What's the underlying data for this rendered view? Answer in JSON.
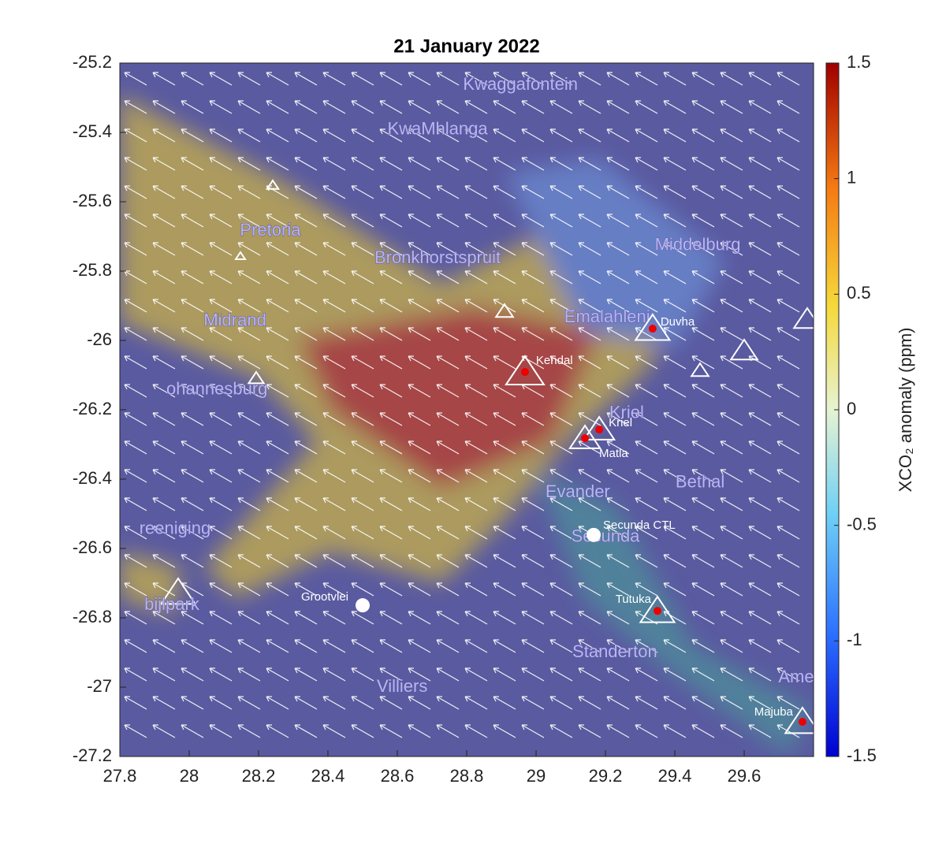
{
  "chart_data": {
    "type": "map",
    "title": "21 January 2022",
    "xlim": [
      27.8,
      29.8
    ],
    "xticks": [
      27.8,
      28,
      28.2,
      28.4,
      28.6,
      28.8,
      29,
      29.2,
      29.4,
      29.6
    ],
    "ylim": [
      -27.2,
      -25.2
    ],
    "yticks": [
      -25.2,
      -25.4,
      -25.6,
      -25.8,
      -26,
      -26.2,
      -26.4,
      -26.6,
      -26.8,
      -27,
      -27.2
    ],
    "colorbar": {
      "label": "XCO₂ anomaly (ppm)",
      "lim": [
        -1.5,
        1.5
      ],
      "ticks": [
        1.5,
        1,
        0.5,
        0,
        -0.5,
        -1,
        -1.5
      ]
    },
    "places": [
      {
        "name": "Kwaggafontein",
        "lon": 28.955,
        "lat": -25.264
      },
      {
        "name": "KwaMhlanga",
        "lon": 28.716,
        "lat": -25.393
      },
      {
        "name": "Pretoria",
        "lon": 28.234,
        "lat": -25.684
      },
      {
        "name": "Bronkhorstspruit",
        "lon": 28.716,
        "lat": -25.764
      },
      {
        "name": "Middelburg",
        "lon": 29.466,
        "lat": -25.727
      },
      {
        "name": "Midrand",
        "lon": 28.132,
        "lat": -25.945
      },
      {
        "name": "Emalahleni",
        "lon": 29.205,
        "lat": -25.934
      },
      {
        "name": "ohannesburg",
        "lon": 28.08,
        "lat": -26.143
      },
      {
        "name": "Kriel",
        "lon": 29.261,
        "lat": -26.211
      },
      {
        "name": "Bethal",
        "lon": 29.473,
        "lat": -26.411
      },
      {
        "name": "Evander",
        "lon": 29.12,
        "lat": -26.439
      },
      {
        "name": "Secunda",
        "lon": 29.2,
        "lat": -26.568
      },
      {
        "name": "reeniging",
        "lon": 27.959,
        "lat": -26.545
      },
      {
        "name": "bijlpark",
        "lon": 27.95,
        "lat": -26.764
      },
      {
        "name": "Standerton",
        "lon": 29.227,
        "lat": -26.9
      },
      {
        "name": "Villiers",
        "lon": 28.614,
        "lat": -27.0
      },
      {
        "name": "Ame",
        "lon": 29.75,
        "lat": -26.973
      }
    ],
    "plants": [
      {
        "name": "Duvha",
        "lon": 29.336,
        "lat": -25.966
      },
      {
        "name": "Kendal",
        "lon": 28.968,
        "lat": -26.091
      },
      {
        "name": "Kriel",
        "lon": 29.182,
        "lat": -26.257
      },
      {
        "name": "Matla",
        "lon": 29.141,
        "lat": -26.282
      },
      {
        "name": "Secunda CTL",
        "lon": 29.166,
        "lat": -26.561
      },
      {
        "name": "Grootvlei",
        "lon": 28.5,
        "lat": -26.764
      },
      {
        "name": "Tutuka",
        "lon": 29.35,
        "lat": -26.78
      },
      {
        "name": "Majuba",
        "lon": 29.768,
        "lat": -27.1
      }
    ]
  }
}
